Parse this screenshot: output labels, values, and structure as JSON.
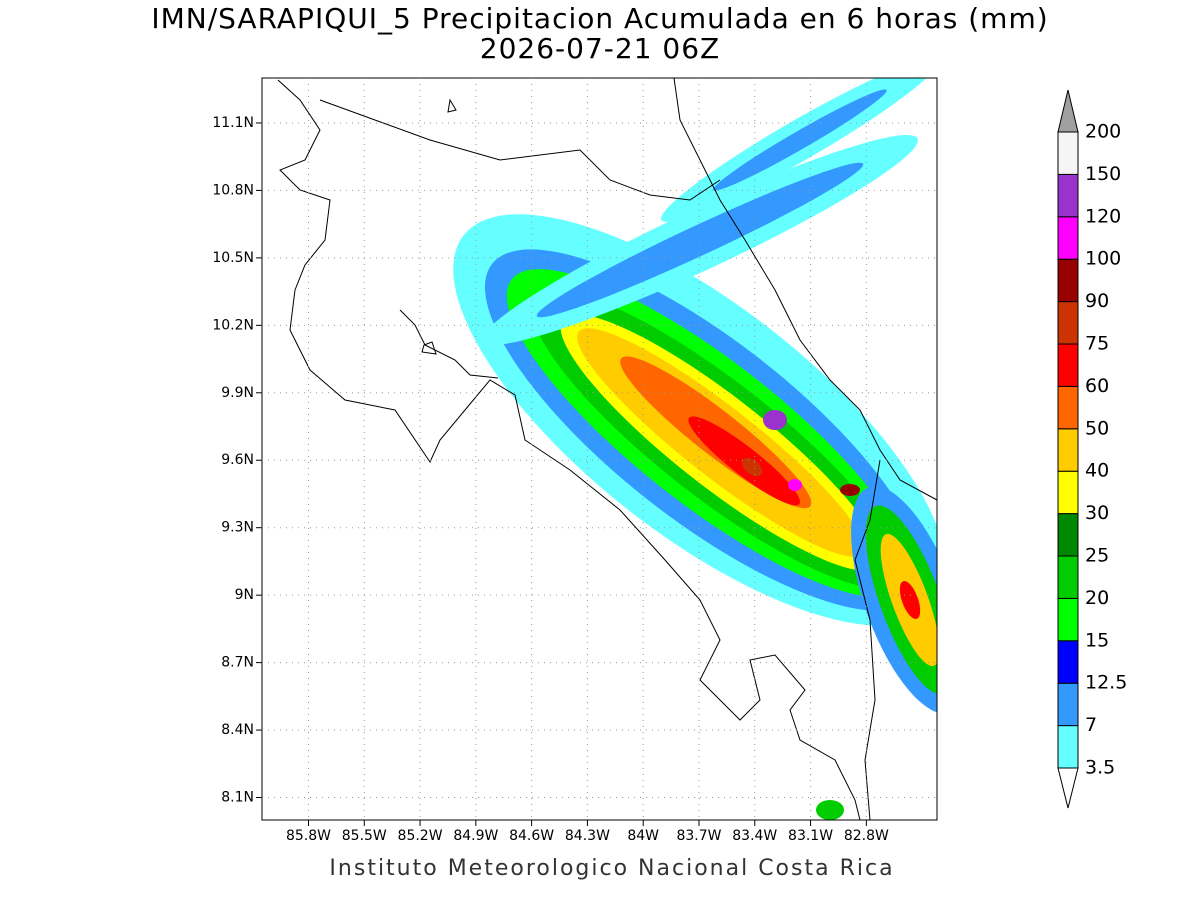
{
  "title": "IMN/SARAPIQUI_5 Precipitacion Acumulada en 6 horas (mm)",
  "subtitle": "2026-07-21 06Z",
  "footer": "Instituto Meteorologico Nacional Costa Rica",
  "map": {
    "xlim": [
      -86.05,
      -82.42
    ],
    "ylim": [
      8.0,
      11.3
    ],
    "xticks": [
      {
        "value": -85.8,
        "label": "85.8W"
      },
      {
        "value": -85.5,
        "label": "85.5W"
      },
      {
        "value": -85.2,
        "label": "85.2W"
      },
      {
        "value": -84.9,
        "label": "84.9W"
      },
      {
        "value": -84.6,
        "label": "84.6W"
      },
      {
        "value": -84.3,
        "label": "84.3W"
      },
      {
        "value": -84,
        "label": "84W"
      },
      {
        "value": -83.7,
        "label": "83.7W"
      },
      {
        "value": -83.4,
        "label": "83.4W"
      },
      {
        "value": -83.1,
        "label": "83.1W"
      },
      {
        "value": -82.8,
        "label": "82.8W"
      }
    ],
    "yticks": [
      {
        "value": 8.1,
        "label": "8.1N"
      },
      {
        "value": 8.4,
        "label": "8.4N"
      },
      {
        "value": 8.7,
        "label": "8.7N"
      },
      {
        "value": 9,
        "label": "9N"
      },
      {
        "value": 9.3,
        "label": "9.3N"
      },
      {
        "value": 9.6,
        "label": "9.6N"
      },
      {
        "value": 9.9,
        "label": "9.9N"
      },
      {
        "value": 10.2,
        "label": "10.2N"
      },
      {
        "value": 10.5,
        "label": "10.5N"
      },
      {
        "value": 10.8,
        "label": "10.8N"
      },
      {
        "value": 11.1,
        "label": "11.1N"
      }
    ],
    "grid": true
  },
  "colorbar": {
    "levels": [
      3.5,
      7,
      12.5,
      15,
      20,
      25,
      30,
      40,
      50,
      60,
      75,
      90,
      100,
      120,
      150,
      200
    ],
    "colors": [
      "#66ffff",
      "#3399ff",
      "#0000ff",
      "#00ff00",
      "#00cc00",
      "#008800",
      "#ffff00",
      "#ffcc00",
      "#ff6600",
      "#ff0000",
      "#cc3300",
      "#990000",
      "#ff00ff",
      "#9933cc",
      "#f5f5f5"
    ],
    "under_color": "#ffffff",
    "over_color": "#a0a0a0"
  }
}
